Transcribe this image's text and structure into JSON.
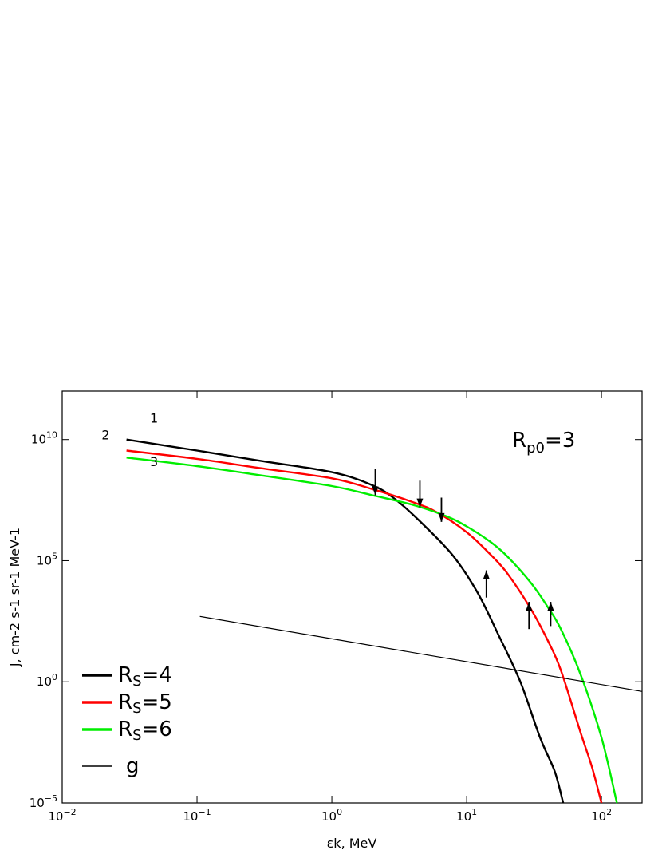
{
  "chart_data": {
    "type": "line",
    "xlabel": "εk, MeV",
    "ylabel": "J, cm-2 s-1 sr-1 MeV-1",
    "x_scale": "log",
    "y_scale": "log",
    "xlim": [
      0.01,
      200
    ],
    "ylim": [
      1e-05,
      1000000000000.0
    ],
    "x_ticks": [
      {
        "value": 0.01,
        "base": "10",
        "exp": "−2"
      },
      {
        "value": 0.1,
        "base": "10",
        "exp": "−1"
      },
      {
        "value": 1,
        "base": "10",
        "exp": "0"
      },
      {
        "value": 10,
        "base": "10",
        "exp": "1"
      },
      {
        "value": 100,
        "base": "10",
        "exp": "2"
      }
    ],
    "y_ticks": [
      {
        "value": 1e-05,
        "base": "10",
        "exp": "−5"
      },
      {
        "value": 1,
        "base": "10",
        "exp": "0"
      },
      {
        "value": 100000,
        "base": "10",
        "exp": "5"
      },
      {
        "value": 10000000000.0,
        "base": "10",
        "exp": "10"
      }
    ],
    "grid": false,
    "legend_position": "bottom-left",
    "series": [
      {
        "name": "RS=4",
        "label": "1",
        "color": "#000000",
        "x": [
          0.03,
          0.1,
          0.3,
          1,
          2,
          3,
          5,
          8,
          12,
          17,
          25,
          35,
          45,
          52
        ],
        "y": [
          10000000000.0,
          3500000000.0,
          1300000000.0,
          450000000.0,
          130000000.0,
          32000000.0,
          2400000.0,
          150000.0,
          5000.0,
          100,
          1,
          0.005,
          0.0002,
          1e-05
        ]
      },
      {
        "name": "RS=5",
        "label": "2",
        "color": "#ff0000",
        "x": [
          0.03,
          0.1,
          0.3,
          1,
          2,
          4,
          6,
          10,
          15,
          20,
          30,
          40,
          50,
          70,
          85,
          100
        ],
        "y": [
          3500000000.0,
          1600000000.0,
          650000000.0,
          250000000.0,
          90000000.0,
          26000000.0,
          10000000.0,
          1500000.0,
          180000.0,
          30000.0,
          1000.0,
          50,
          3,
          0.008,
          0.0003,
          1e-05
        ]
      },
      {
        "name": "RS=6",
        "label": "3",
        "color": "#00ee00",
        "x": [
          0.03,
          0.1,
          0.3,
          1,
          2,
          4,
          7,
          10,
          15,
          20,
          30,
          40,
          50,
          70,
          100,
          130
        ],
        "y": [
          1800000000.0,
          800000000.0,
          330000000.0,
          120000000.0,
          50000000.0,
          20000000.0,
          7000000.0,
          2600000.0,
          600000.0,
          150000.0,
          12000.0,
          1200.0,
          150,
          2,
          0.005,
          1e-05
        ]
      },
      {
        "name": "g",
        "label": "",
        "color": "#000000",
        "x": [
          0.105,
          200
        ],
        "y": [
          500,
          0.4
        ]
      }
    ],
    "arrows": [
      {
        "x": 2.1,
        "y_from": 600000000.0,
        "y_to": 50000000.0,
        "direction": "down"
      },
      {
        "x": 4.5,
        "y_from": 200000000.0,
        "y_to": 16000000.0,
        "direction": "down"
      },
      {
        "x": 6.5,
        "y_from": 40000000.0,
        "y_to": 4000000.0,
        "direction": "down"
      },
      {
        "x": 14,
        "y_from": 3000,
        "y_to": 40000,
        "direction": "up"
      },
      {
        "x": 29,
        "y_from": 150,
        "y_to": 2000,
        "direction": "up"
      },
      {
        "x": 42,
        "y_from": 200,
        "y_to": 2000,
        "direction": "up"
      }
    ],
    "curve_labels": [
      {
        "text": "1",
        "x": 0.048,
        "y": 50000000000.0
      },
      {
        "text": "2",
        "x": 0.021,
        "y": 10000000000.0
      },
      {
        "text": "3",
        "x": 0.048,
        "y": 800000000.0
      }
    ],
    "annotation": {
      "main": "R",
      "sub": "p0",
      "rest": "=3"
    },
    "legend": [
      {
        "main": "R",
        "sub": "S",
        "rest": "=4",
        "color": "#000000",
        "width": 3
      },
      {
        "main": "R",
        "sub": "S",
        "rest": "=5",
        "color": "#ff0000",
        "width": 3
      },
      {
        "main": "R",
        "sub": "S",
        "rest": "=6",
        "color": "#00ee00",
        "width": 3
      },
      {
        "main": "g",
        "sub": "",
        "rest": "",
        "color": "#000000",
        "width": 1
      }
    ]
  }
}
